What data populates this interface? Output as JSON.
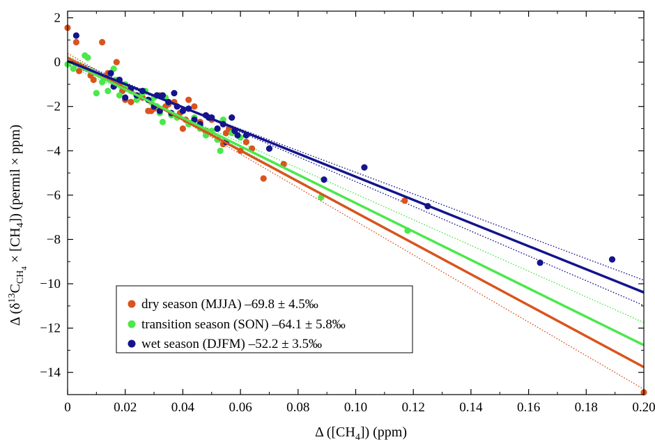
{
  "chart_data": {
    "type": "scatter",
    "xlabel": "Δ ([CH₄]) (ppm)",
    "ylabel": "Δ (δ¹³C_CH₄ × [CH₄]) (permil × ppm)",
    "xlim": [
      0,
      0.2
    ],
    "ylim": [
      -15,
      2.3
    ],
    "xticks": [
      0,
      0.02,
      0.04,
      0.06,
      0.08,
      0.1,
      0.12,
      0.14,
      0.16,
      0.18,
      0.2
    ],
    "xtick_labels": [
      "0",
      "0.02",
      "0.04",
      "0.06",
      "0.08",
      "0.10",
      "0.12",
      "0.14",
      "0.16",
      "0.18",
      "0.20"
    ],
    "yticks": [
      2,
      0,
      -2,
      -4,
      -6,
      -8,
      -10,
      -12,
      -14
    ],
    "ytick_labels": [
      "2",
      "0",
      "−2",
      "−4",
      "−6",
      "−8",
      "−10",
      "−12",
      "−14"
    ],
    "grid": false,
    "legend_position": "bottom-left",
    "series": [
      {
        "name": "dry season (MJJA) –69.8 ± 4.5‰",
        "color": "#d9541e",
        "fit": {
          "intercept": 0.2,
          "slope": -69.8
        },
        "ci_low": {
          "intercept": 0.4,
          "slope": -75.8
        },
        "ci_high": {
          "intercept": 0.0,
          "slope": -63.8
        },
        "points": [
          [
            0.0,
            1.55
          ],
          [
            0.003,
            0.9
          ],
          [
            0.004,
            -0.4
          ],
          [
            0.008,
            -0.6
          ],
          [
            0.009,
            -0.8
          ],
          [
            0.012,
            0.9
          ],
          [
            0.014,
            -0.5
          ],
          [
            0.016,
            -0.9
          ],
          [
            0.017,
            0.0
          ],
          [
            0.018,
            -1.0
          ],
          [
            0.019,
            -1.3
          ],
          [
            0.02,
            -1.7
          ],
          [
            0.022,
            -1.8
          ],
          [
            0.024,
            -1.5
          ],
          [
            0.026,
            -1.6
          ],
          [
            0.028,
            -2.2
          ],
          [
            0.029,
            -2.2
          ],
          [
            0.03,
            -2.1
          ],
          [
            0.032,
            -1.5
          ],
          [
            0.034,
            -2.0
          ],
          [
            0.035,
            -1.9
          ],
          [
            0.037,
            -1.8
          ],
          [
            0.039,
            -2.3
          ],
          [
            0.04,
            -3.0
          ],
          [
            0.041,
            -2.6
          ],
          [
            0.042,
            -1.7
          ],
          [
            0.044,
            -2.0
          ],
          [
            0.046,
            -2.7
          ],
          [
            0.048,
            -3.1
          ],
          [
            0.05,
            -2.6
          ],
          [
            0.052,
            -3.0
          ],
          [
            0.054,
            -3.7
          ],
          [
            0.055,
            -3.2
          ],
          [
            0.056,
            -3.0
          ],
          [
            0.06,
            -4.0
          ],
          [
            0.062,
            -3.6
          ],
          [
            0.064,
            -3.9
          ],
          [
            0.068,
            -5.25
          ],
          [
            0.075,
            -4.6
          ],
          [
            0.117,
            -6.25
          ],
          [
            0.2,
            -14.9
          ]
        ]
      },
      {
        "name": "transition season (SON)  –64.1 ± 5.8‰",
        "color": "#4be84b",
        "fit": {
          "intercept": 0.05,
          "slope": -64.1
        },
        "ci_low": {
          "intercept": 0.3,
          "slope": -70.4
        },
        "ci_high": {
          "intercept": -0.15,
          "slope": -58.0
        },
        "points": [
          [
            0.0,
            -0.1
          ],
          [
            0.002,
            -0.3
          ],
          [
            0.006,
            0.3
          ],
          [
            0.007,
            0.2
          ],
          [
            0.01,
            -1.4
          ],
          [
            0.012,
            -0.9
          ],
          [
            0.014,
            -1.3
          ],
          [
            0.015,
            -0.5
          ],
          [
            0.016,
            -0.3
          ],
          [
            0.017,
            -0.8
          ],
          [
            0.018,
            -1.5
          ],
          [
            0.02,
            -1.0
          ],
          [
            0.022,
            -1.3
          ],
          [
            0.024,
            -1.7
          ],
          [
            0.026,
            -1.4
          ],
          [
            0.027,
            -1.3
          ],
          [
            0.029,
            -1.8
          ],
          [
            0.03,
            -1.6
          ],
          [
            0.031,
            -2.0
          ],
          [
            0.032,
            -2.3
          ],
          [
            0.033,
            -2.7
          ],
          [
            0.034,
            -1.6
          ],
          [
            0.036,
            -2.4
          ],
          [
            0.038,
            -2.5
          ],
          [
            0.04,
            -2.2
          ],
          [
            0.042,
            -2.8
          ],
          [
            0.044,
            -2.5
          ],
          [
            0.046,
            -3.0
          ],
          [
            0.048,
            -3.3
          ],
          [
            0.05,
            -3.1
          ],
          [
            0.052,
            -3.5
          ],
          [
            0.053,
            -4.0
          ],
          [
            0.054,
            -2.6
          ],
          [
            0.055,
            -3.6
          ],
          [
            0.057,
            -3.2
          ],
          [
            0.06,
            -3.4
          ],
          [
            0.088,
            -6.1
          ],
          [
            0.118,
            -7.6
          ]
        ]
      },
      {
        "name": "wet season (DJFM) –52.2 ± 3.5‰",
        "color": "#14148c",
        "fit": {
          "intercept": 0.05,
          "slope": -52.2
        },
        "ci_low": {
          "intercept": 0.2,
          "slope": -55.9
        },
        "ci_high": {
          "intercept": -0.1,
          "slope": -48.7
        },
        "points": [
          [
            0.003,
            1.2
          ],
          [
            0.015,
            -0.5
          ],
          [
            0.016,
            -1.1
          ],
          [
            0.018,
            -0.8
          ],
          [
            0.02,
            -1.6
          ],
          [
            0.022,
            -1.2
          ],
          [
            0.024,
            -1.5
          ],
          [
            0.026,
            -1.3
          ],
          [
            0.028,
            -1.7
          ],
          [
            0.03,
            -2.0
          ],
          [
            0.031,
            -1.5
          ],
          [
            0.032,
            -2.2
          ],
          [
            0.033,
            -1.5
          ],
          [
            0.035,
            -1.8
          ],
          [
            0.036,
            -2.3
          ],
          [
            0.037,
            -1.4
          ],
          [
            0.038,
            -2.0
          ],
          [
            0.04,
            -2.2
          ],
          [
            0.042,
            -2.1
          ],
          [
            0.044,
            -2.6
          ],
          [
            0.046,
            -2.8
          ],
          [
            0.048,
            -2.4
          ],
          [
            0.049,
            -2.5
          ],
          [
            0.05,
            -2.5
          ],
          [
            0.052,
            -3.0
          ],
          [
            0.054,
            -2.8
          ],
          [
            0.055,
            -3.6
          ],
          [
            0.057,
            -2.5
          ],
          [
            0.058,
            -3.1
          ],
          [
            0.059,
            -3.3
          ],
          [
            0.062,
            -3.3
          ],
          [
            0.07,
            -3.9
          ],
          [
            0.089,
            -5.3
          ],
          [
            0.103,
            -4.75
          ],
          [
            0.125,
            -6.5
          ],
          [
            0.164,
            -9.05
          ],
          [
            0.189,
            -8.9
          ]
        ]
      }
    ]
  }
}
